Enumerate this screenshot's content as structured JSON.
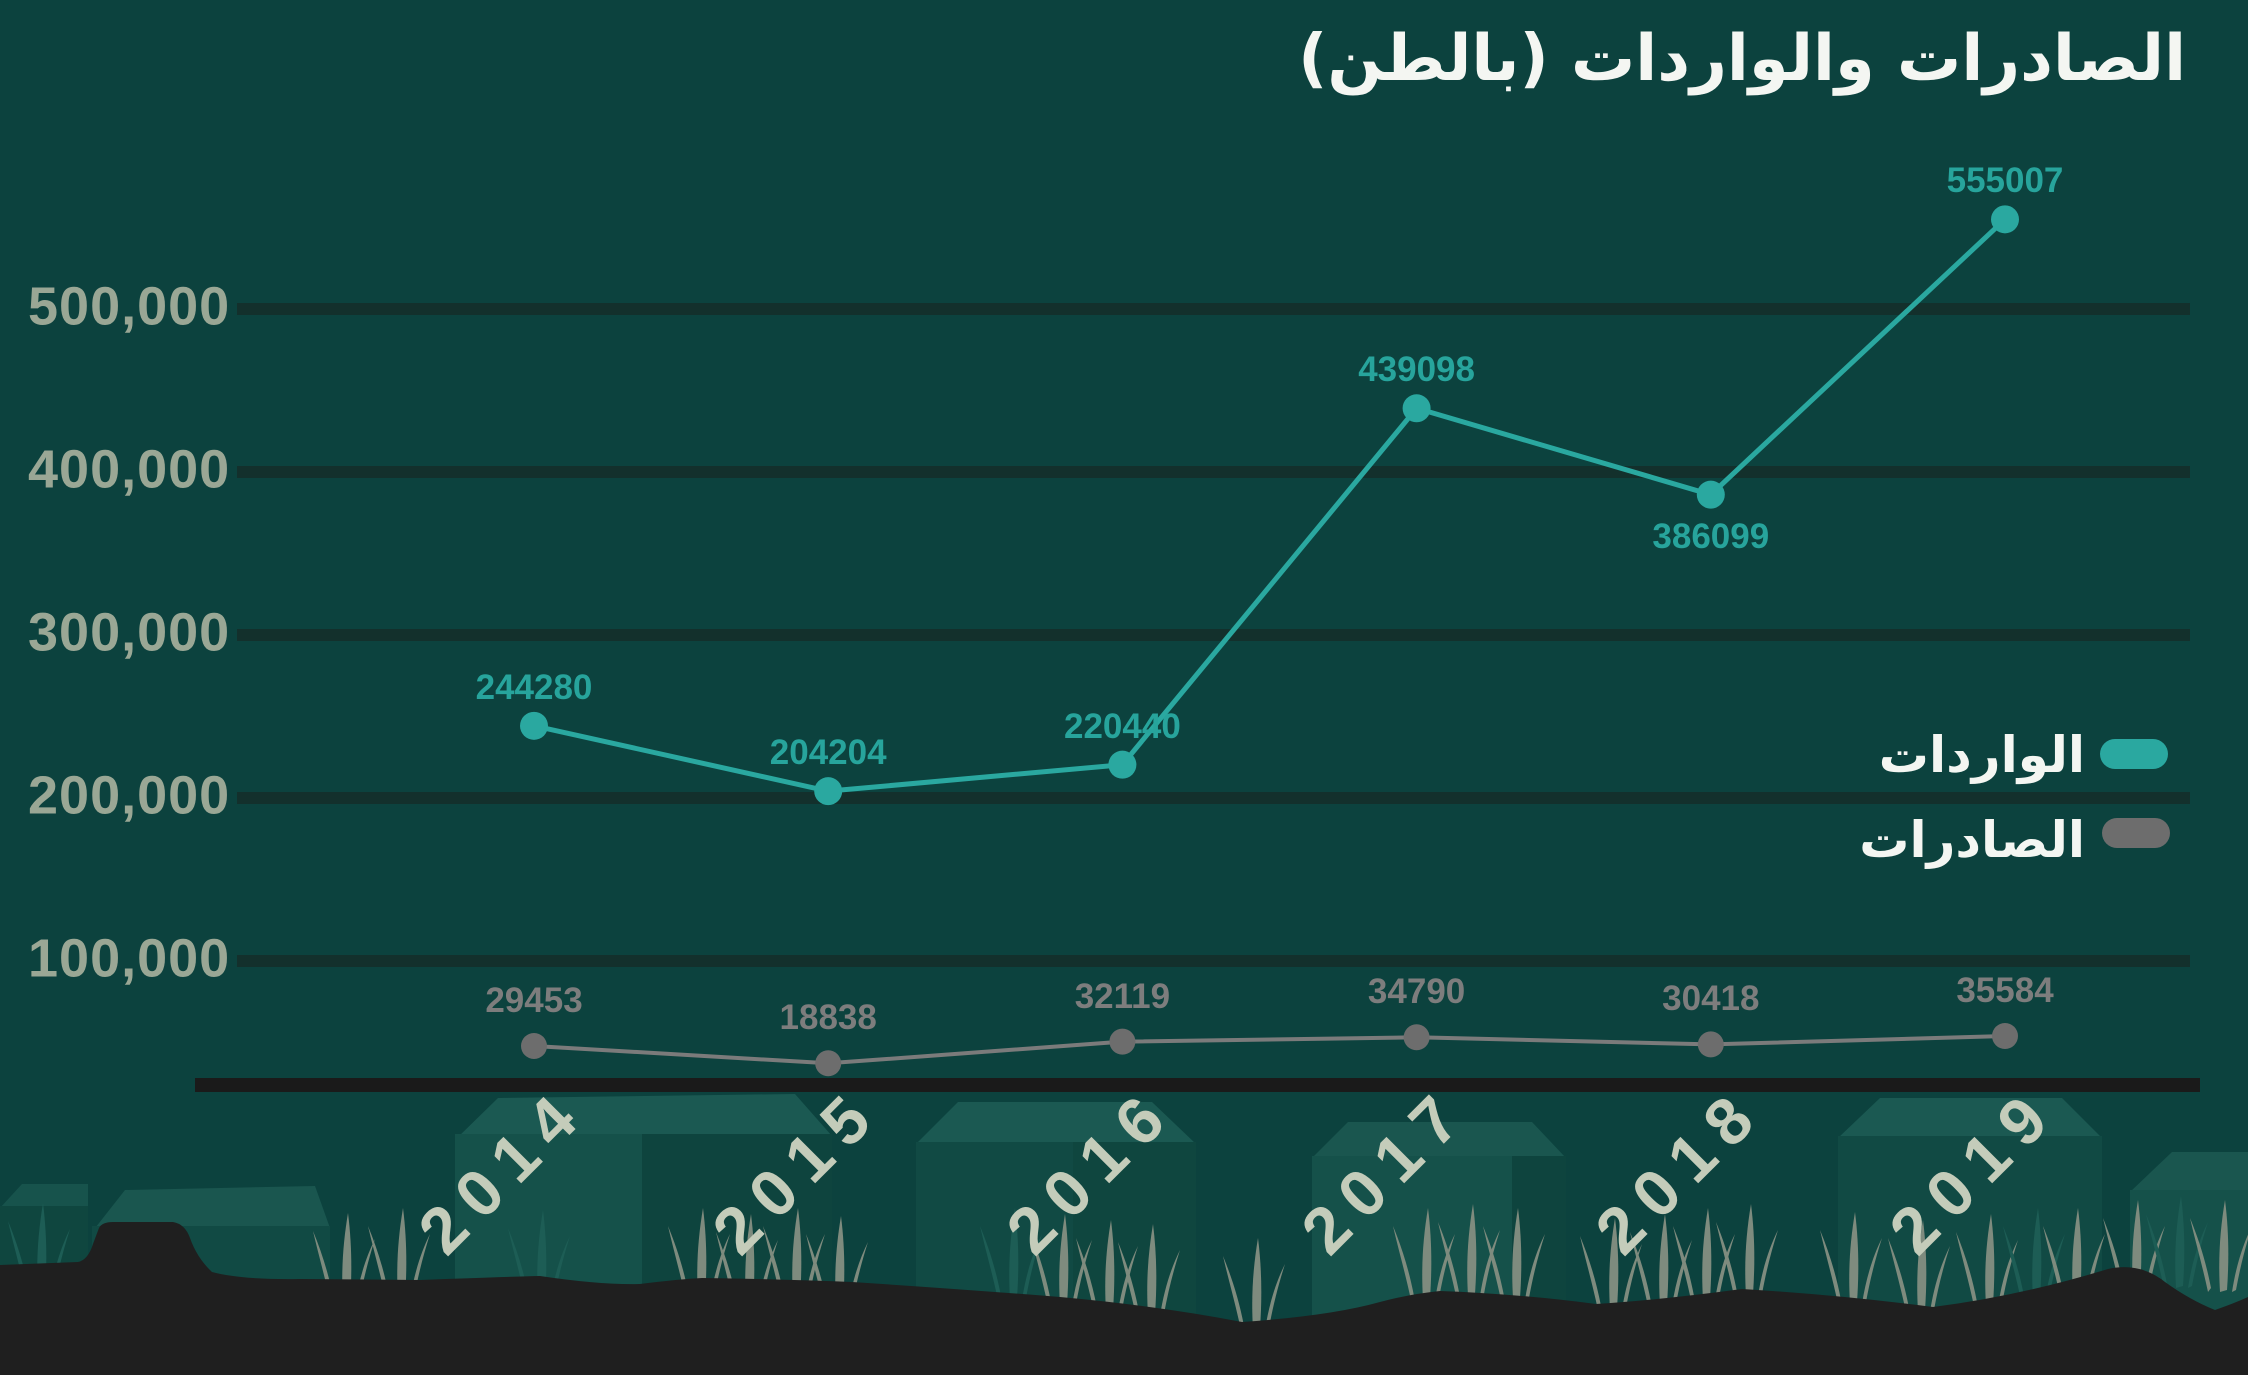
{
  "title": "الصادرات والواردات (بالطن)",
  "legend": {
    "imports_label": "الواردات",
    "exports_label": "الصادرات"
  },
  "colors": {
    "background": "#0c423e",
    "grid": "#13302c",
    "axis": "#1a1a1a",
    "imports": "#2aa8a0",
    "imports_label": "#27a49c",
    "exports": "#7b7b7b",
    "exports_marker": "#6d6d6d",
    "exports_label": "#7d7d7d",
    "ytick": "#9aa795",
    "year": "#c4ccba",
    "title_text": "#f4f6f2"
  },
  "chart_data": {
    "type": "line",
    "title": "الصادرات والواردات (بالطن)",
    "categories": [
      "2014",
      "2015",
      "2016",
      "2017",
      "2018",
      "2019"
    ],
    "series": [
      {
        "name": "الواردات",
        "color_key": "imports",
        "values": [
          244280,
          204204,
          220440,
          439098,
          386099,
          555007
        ]
      },
      {
        "name": "الصادرات",
        "color_key": "exports",
        "values": [
          29453,
          18838,
          32119,
          34790,
          30418,
          35584
        ]
      }
    ],
    "y_ticks": [
      {
        "value": 500000,
        "label": "500,000"
      },
      {
        "value": 400000,
        "label": "400,000"
      },
      {
        "value": 300000,
        "label": "300,000"
      },
      {
        "value": 200000,
        "label": "200,000"
      },
      {
        "value": 100000,
        "label": "100,000"
      }
    ],
    "ylim": [
      0,
      560000
    ],
    "grid": "horizontal",
    "legend_position": "right"
  }
}
